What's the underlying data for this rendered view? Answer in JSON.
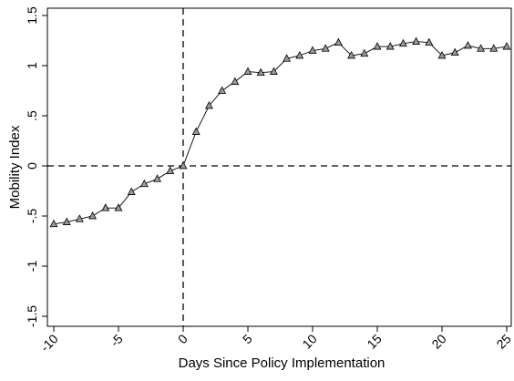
{
  "chart_data": {
    "type": "line",
    "title": "",
    "xlabel": "Days Since Policy Implementation",
    "ylabel": "Mobility Index",
    "xlim": [
      -10,
      25
    ],
    "ylim": [
      -1.5,
      1.5
    ],
    "x_ticks": [
      -10,
      -5,
      0,
      5,
      10,
      15,
      20,
      25
    ],
    "x_tick_labels": [
      "-10",
      "-5",
      "0",
      "5",
      "10",
      "15",
      "20",
      "25"
    ],
    "y_ticks": [
      1.5,
      1,
      0.5,
      0,
      -0.5,
      -1,
      -1.5
    ],
    "y_tick_labels": [
      "1.5",
      "1",
      ".5",
      "0",
      "-.5",
      "-1",
      "-1.5"
    ],
    "grid": false,
    "legend": "none",
    "reference_lines": {
      "x": 0,
      "y": 0,
      "style": "dashed"
    },
    "marker": "triangle",
    "series": [
      {
        "x": [
          -10,
          -9,
          -8,
          -7,
          -6,
          -5,
          -4,
          -3,
          -2,
          -1,
          0,
          1,
          2,
          3,
          4,
          5,
          6,
          7,
          8,
          9,
          10,
          11,
          12,
          13,
          14,
          15,
          16,
          17,
          18,
          19,
          20,
          21,
          22,
          23,
          24,
          25
        ],
        "values": [
          -0.58,
          -0.56,
          -0.53,
          -0.5,
          -0.42,
          -0.42,
          -0.26,
          -0.18,
          -0.13,
          -0.05,
          0.0,
          0.34,
          0.6,
          0.75,
          0.84,
          0.94,
          0.93,
          0.94,
          1.07,
          1.1,
          1.15,
          1.17,
          1.23,
          1.1,
          1.12,
          1.19,
          1.19,
          1.22,
          1.24,
          1.23,
          1.1,
          1.13,
          1.2,
          1.17,
          1.17,
          1.19
        ]
      }
    ]
  }
}
